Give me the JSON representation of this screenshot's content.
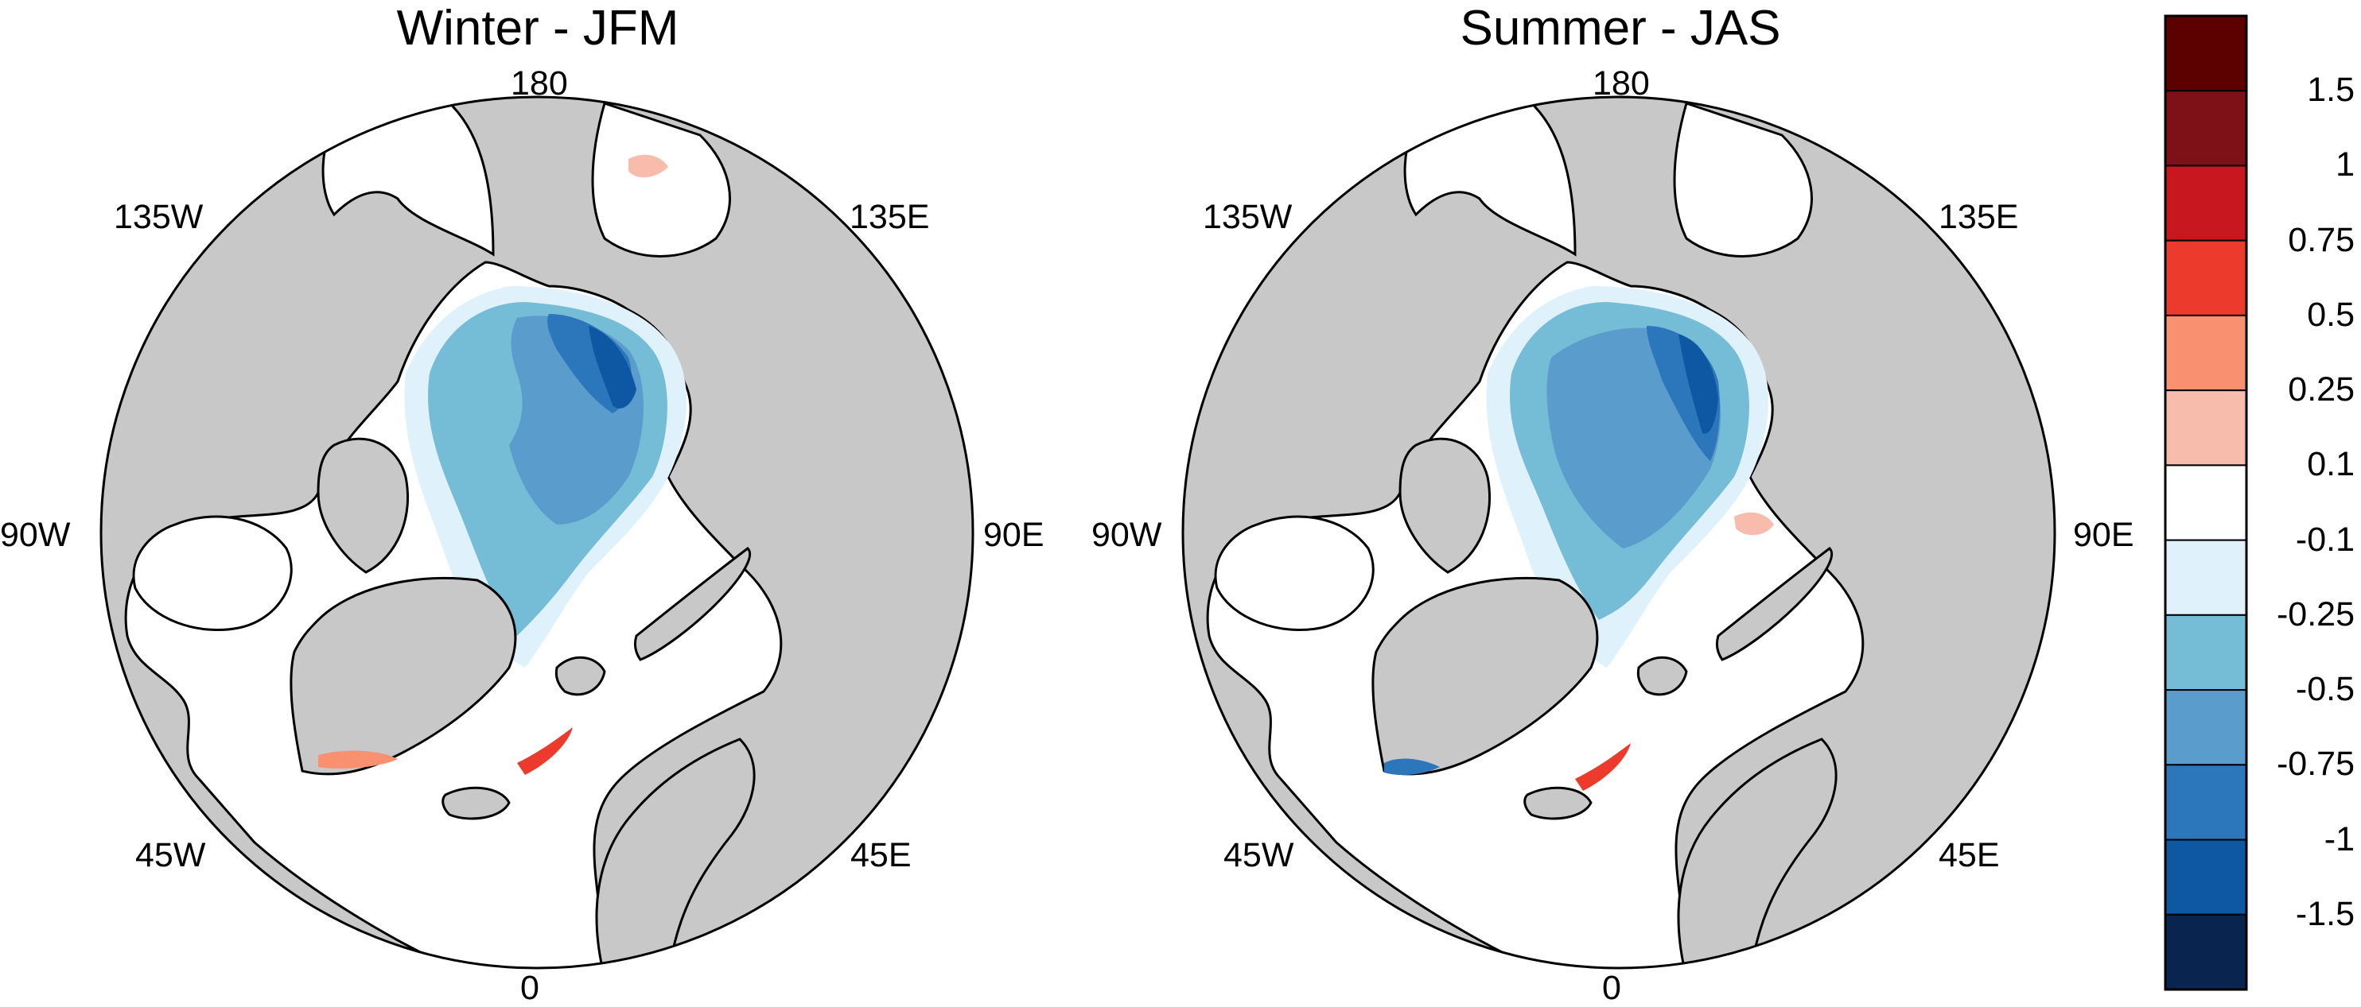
{
  "panels": [
    {
      "title": "Winter - JFM",
      "lon_labels": {
        "top": "180",
        "upper_left": "135W",
        "upper_right": "135E",
        "left": "90W",
        "right": "90E",
        "lower_left": "45W",
        "lower_right": "45E",
        "bottom": "0"
      }
    },
    {
      "title": "Summer - JAS",
      "lon_labels": {
        "top": "180",
        "upper_left": "135W",
        "upper_right": "135E",
        "left": "90W",
        "right": "90E",
        "lower_left": "45W",
        "lower_right": "45E",
        "bottom": "0"
      }
    }
  ],
  "colorbar": {
    "labels": [
      "1.5",
      "1",
      "0.75",
      "0.5",
      "0.25",
      "0.1",
      "-0.1",
      "-0.25",
      "-0.5",
      "-0.75",
      "-1",
      "-1.5"
    ],
    "colors": [
      "#5c0000",
      "#7e1018",
      "#c8171e",
      "#ec3b2c",
      "#f9906f",
      "#f8bcad",
      "#ffffff",
      "#dff2fb",
      "#75bcd6",
      "#5a9ccb",
      "#2c77bb",
      "#0d57a3",
      "#0a2450"
    ]
  },
  "colors": {
    "land": "#c8c8c8",
    "ocean": "#ffffff",
    "border": "#000000"
  }
}
